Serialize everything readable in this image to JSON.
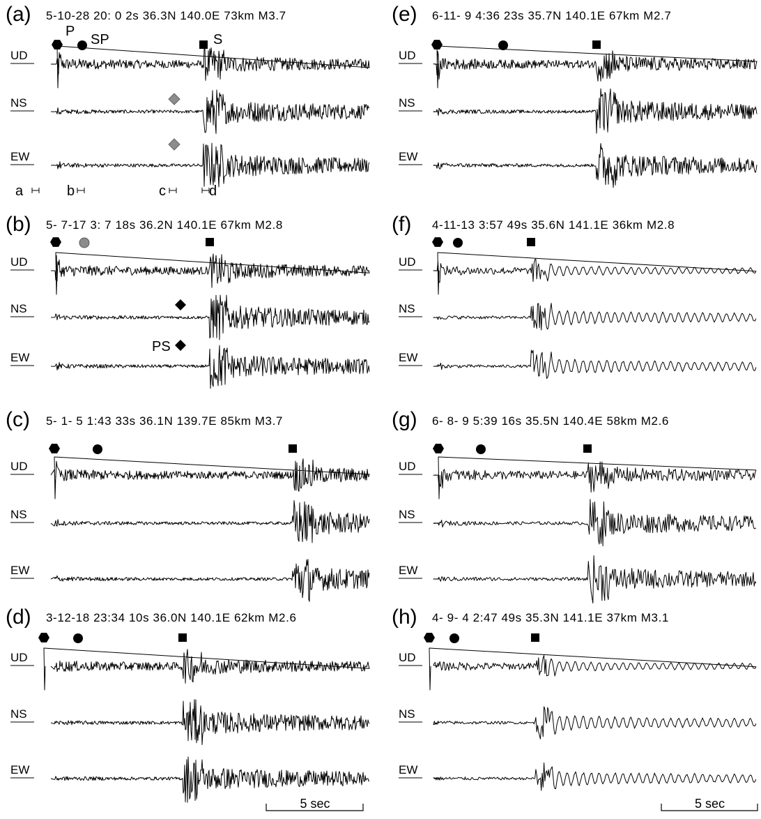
{
  "panels": [
    {
      "id": "a",
      "letter": "(a)",
      "header": "5-10-28 20: 0   2s 36.3N 140.0E  73km   M3.7",
      "markers": [
        {
          "shape": "hexagon",
          "color": "#000000"
        },
        {
          "shape": "circle",
          "color": "#000000"
        },
        {
          "shape": "square",
          "color": "#000000"
        },
        {
          "shape": "diamond",
          "color": "#8c8c8c"
        },
        {
          "shape": "diamond",
          "color": "#8c8c8c"
        }
      ],
      "phase_labels": [
        "P",
        "SP",
        "S"
      ],
      "window_labels": [
        "a",
        "b",
        "c",
        "d"
      ]
    },
    {
      "id": "b",
      "letter": "(b)",
      "header": "5- 7-17  3: 7   18s 36.2N 140.1E  67km   M2.8",
      "markers": [
        {
          "shape": "hexagon",
          "color": "#000000"
        },
        {
          "shape": "circle",
          "color": "#8c8c8c"
        },
        {
          "shape": "square",
          "color": "#000000"
        },
        {
          "shape": "diamond",
          "color": "#000000"
        },
        {
          "shape": "diamond",
          "color": "#000000"
        }
      ],
      "phase_labels": [
        "PS"
      ]
    },
    {
      "id": "c",
      "letter": "(c)",
      "header": "5- 1- 5  1:43    33s 36.1N 139.7E  85km   M3.7",
      "markers": [
        {
          "shape": "hexagon",
          "color": "#000000"
        },
        {
          "shape": "circle",
          "color": "#000000"
        },
        {
          "shape": "square",
          "color": "#000000"
        }
      ]
    },
    {
      "id": "d",
      "letter": "(d)",
      "header": "3-12-18 23:34   10s 36.0N 140.1E  62km   M2.6",
      "markers": [
        {
          "shape": "hexagon",
          "color": "#000000"
        },
        {
          "shape": "circle",
          "color": "#000000"
        },
        {
          "shape": "square",
          "color": "#000000"
        }
      ]
    },
    {
      "id": "e",
      "letter": "(e)",
      "header": "6-11- 9   4:36   23s 35.7N 140.1E  67km   M2.7",
      "markers": [
        {
          "shape": "hexagon",
          "color": "#000000"
        },
        {
          "shape": "circle",
          "color": "#000000"
        },
        {
          "shape": "square",
          "color": "#000000"
        }
      ]
    },
    {
      "id": "f",
      "letter": "(f)",
      "header": "4-11-13   3:57   49s 35.6N 141.1E  36km   M2.8",
      "markers": [
        {
          "shape": "hexagon",
          "color": "#000000"
        },
        {
          "shape": "circle",
          "color": "#000000"
        },
        {
          "shape": "square",
          "color": "#000000"
        }
      ]
    },
    {
      "id": "g",
      "letter": "(g)",
      "header": "6- 8- 9   5:39   16s 35.5N 140.4E  58km   M2.6",
      "markers": [
        {
          "shape": "hexagon",
          "color": "#000000"
        },
        {
          "shape": "circle",
          "color": "#000000"
        },
        {
          "shape": "square",
          "color": "#000000"
        }
      ]
    },
    {
      "id": "h",
      "letter": "(h)",
      "header": "4- 9- 4   2:47   49s 35.3N 141.1E  37km   M3.1",
      "markers": [
        {
          "shape": "hexagon",
          "color": "#000000"
        },
        {
          "shape": "circle",
          "color": "#000000"
        },
        {
          "shape": "square",
          "color": "#000000"
        }
      ]
    }
  ],
  "channels": [
    "UD",
    "NS",
    "EW"
  ],
  "scale_label": "5 sec",
  "colors": {
    "trace": "#000000",
    "gray_marker": "#8c8c8c"
  }
}
